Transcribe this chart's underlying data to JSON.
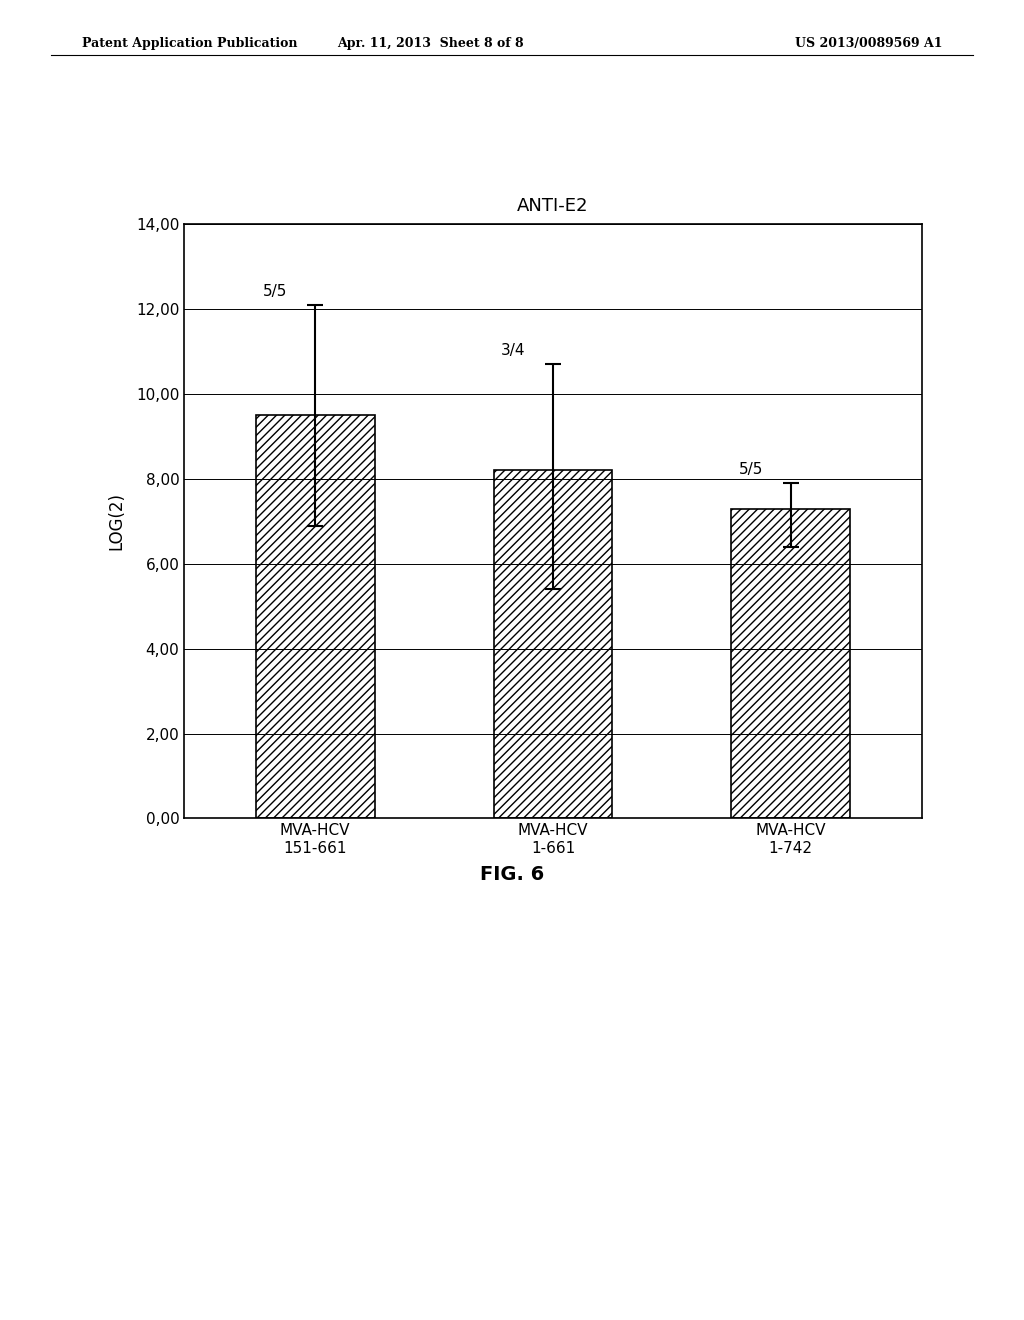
{
  "title": "ANTI-E2",
  "ylabel": "LOG(2)",
  "categories": [
    "MVA-HCV\n151-661",
    "MVA-HCV\n1-661",
    "MVA-HCV\n1-742"
  ],
  "values": [
    9.5,
    8.2,
    7.3
  ],
  "error_upper": [
    12.1,
    10.7,
    7.9
  ],
  "error_lower": [
    6.9,
    5.4,
    6.4
  ],
  "labels": [
    "5/5",
    "3/4",
    "5/5"
  ],
  "ylim": [
    0,
    14
  ],
  "yticks": [
    0.0,
    2.0,
    4.0,
    6.0,
    8.0,
    10.0,
    12.0,
    14.0
  ],
  "ytick_labels": [
    "0,00",
    "2,00",
    "4,00",
    "6,00",
    "8,00",
    "10,00",
    "12,00",
    "14,00"
  ],
  "fig_caption": "FIG. 6",
  "bar_color": "#d9d9d9",
  "bar_edgecolor": "#000000",
  "hatch": "////",
  "header_left": "Patent Application Publication",
  "header_center": "Apr. 11, 2013  Sheet 8 of 8",
  "header_right": "US 2013/0089569 A1"
}
